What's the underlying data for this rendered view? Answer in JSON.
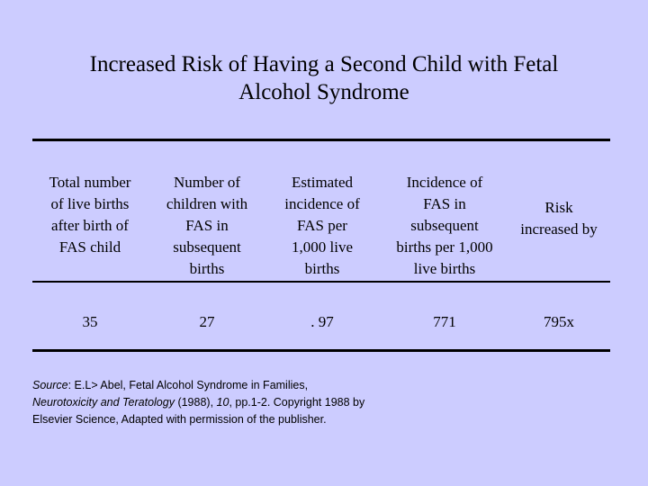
{
  "slide": {
    "title_line1": "Increased Risk of Having a Second Child with Fetal",
    "title_line2": "Alcohol Syndrome"
  },
  "table": {
    "headers": [
      [
        "Total number",
        "of live births",
        "after birth of",
        "FAS child"
      ],
      [
        "Number of",
        "children with",
        "FAS in",
        "subsequent",
        "births"
      ],
      [
        "Estimated",
        "incidence of",
        "FAS per",
        "1,000 live",
        "births"
      ],
      [
        "Incidence of",
        "FAS in",
        "subsequent",
        "births per 1,000",
        "live births"
      ],
      [
        "Risk",
        "increased by"
      ]
    ],
    "values": [
      "35",
      "27",
      ". 97",
      "771",
      "795x"
    ]
  },
  "source": {
    "label": "Source",
    "author": ": E.L> Abel, Fetal Alcohol Syndrome in Families,",
    "journal": "Neurotoxicity and Teratology",
    "year": " (1988), ",
    "volume": "10",
    "pages": ", pp.1-2. Copyright 1988 by",
    "publisher_line": "Elsevier Science, Adapted with permission of the publisher."
  }
}
